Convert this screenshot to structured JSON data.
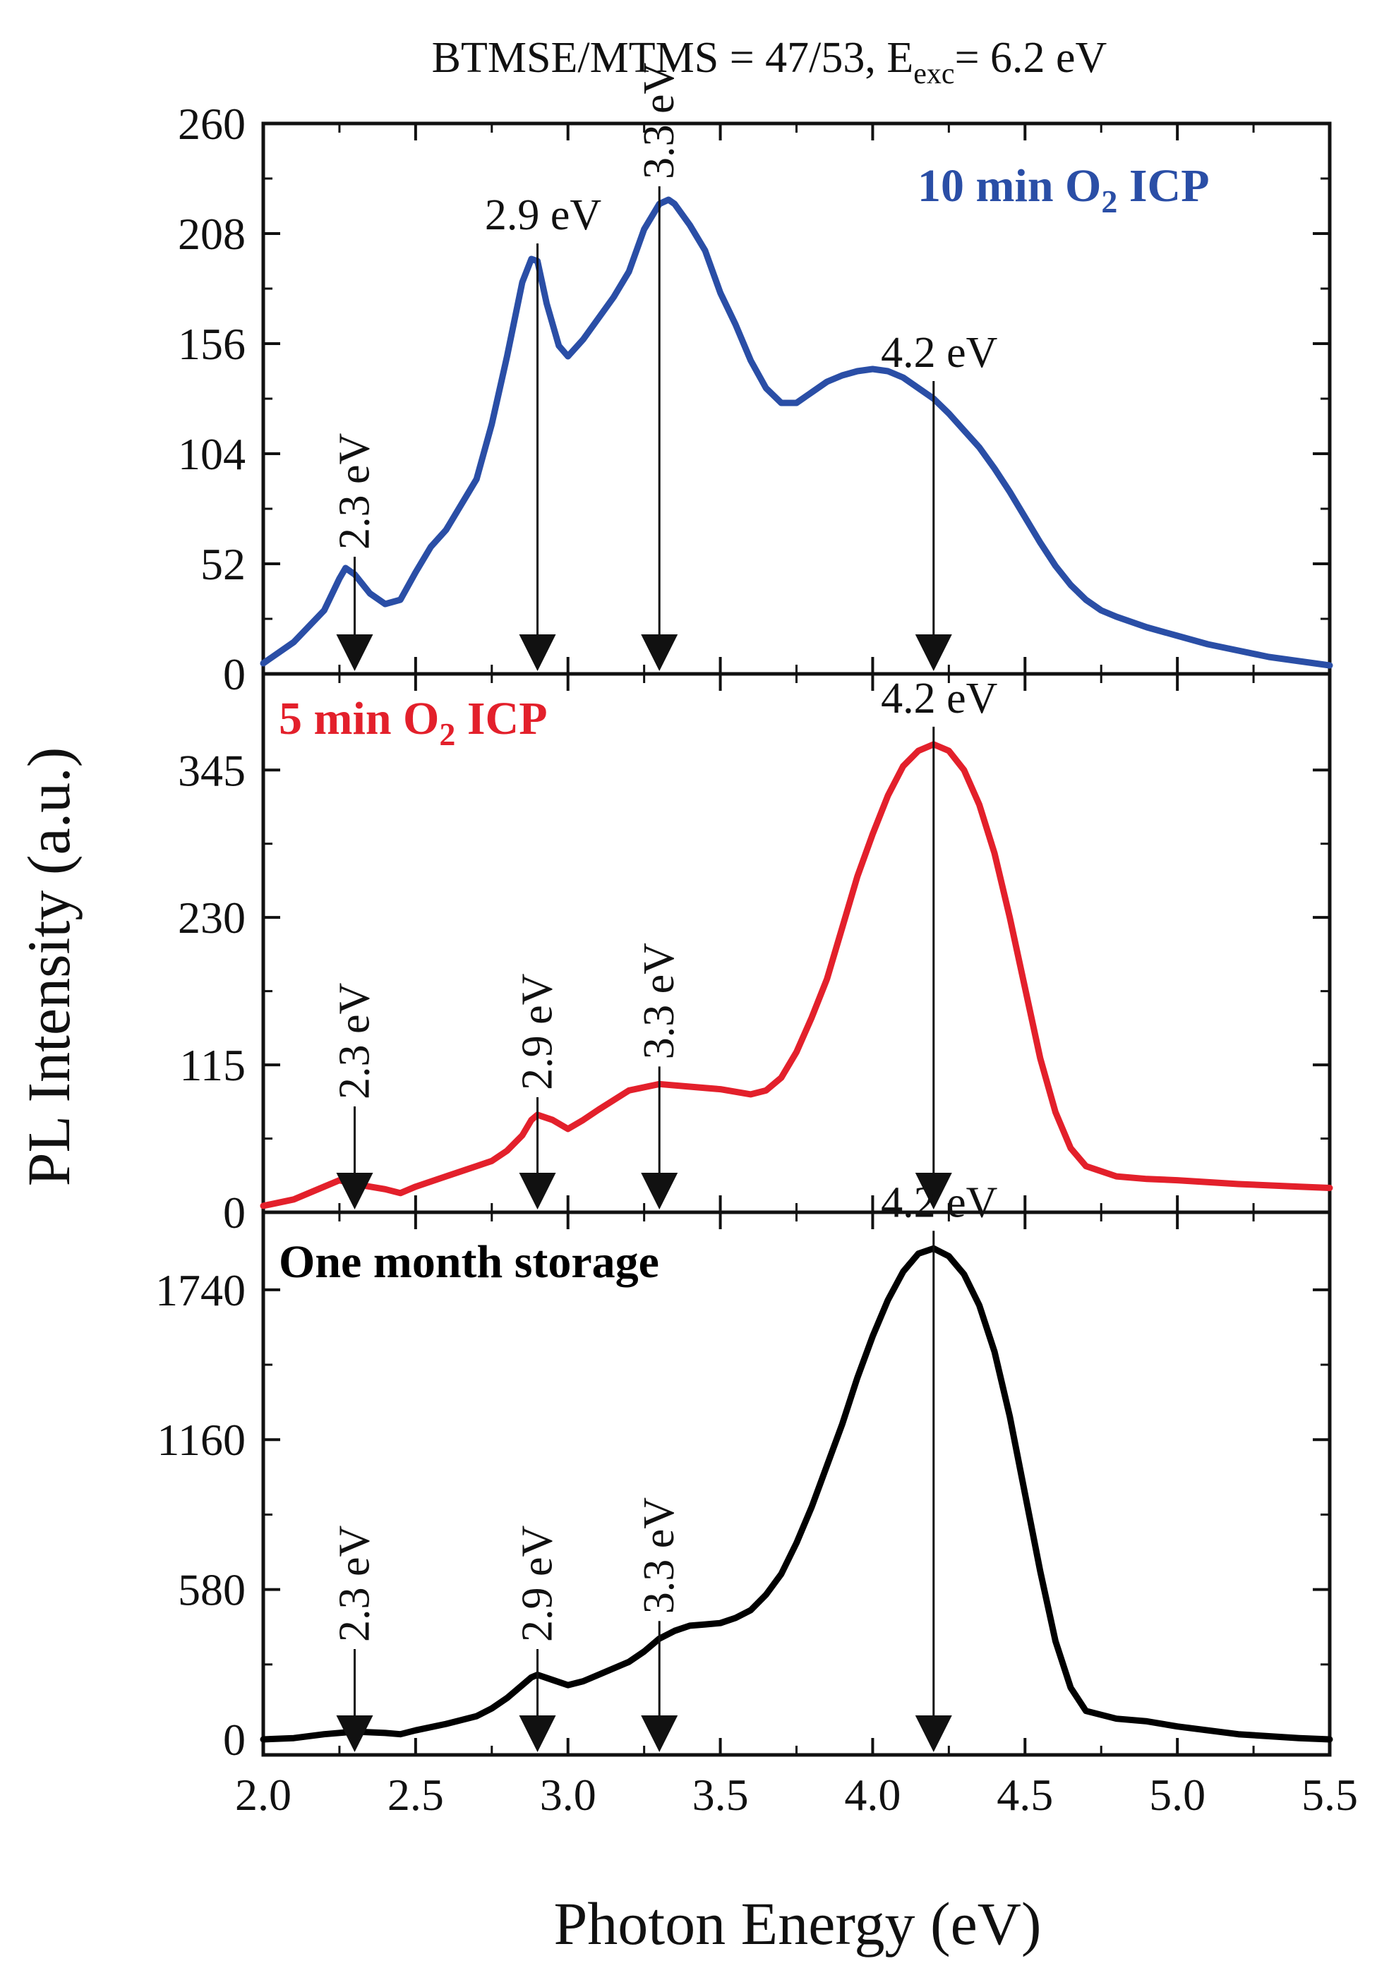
{
  "figure": {
    "title": {
      "prefix": "BTMSE/MTMS = 47/53, E",
      "sub": "exc",
      "suffix": "= 6.2 eV"
    },
    "xlabel": "Photon Energy (eV)",
    "ylabel": "PL Intensity (a.u.)",
    "x_ticks": [
      "2.0",
      "2.5",
      "3.0",
      "3.5",
      "4.0",
      "4.5",
      "5.0",
      "5.5"
    ]
  },
  "chart_data": [
    {
      "type": "line",
      "panel_label": {
        "prefix": "10 min O",
        "sub": "2",
        "suffix": " ICP"
      },
      "color": "#2a4ea6",
      "xlim": [
        2.0,
        5.5
      ],
      "ylim": [
        0,
        260
      ],
      "y_ticks": [
        0,
        52,
        104,
        156,
        208,
        260
      ],
      "series": [
        {
          "x": [
            2.0,
            2.1,
            2.2,
            2.25,
            2.27,
            2.3,
            2.35,
            2.4,
            2.45,
            2.5,
            2.55,
            2.6,
            2.65,
            2.7,
            2.75,
            2.8,
            2.85,
            2.88,
            2.9,
            2.93,
            2.97,
            3.0,
            3.05,
            3.1,
            3.15,
            3.2,
            3.25,
            3.3,
            3.33,
            3.35,
            3.4,
            3.45,
            3.5,
            3.55,
            3.6,
            3.65,
            3.7,
            3.75,
            3.8,
            3.85,
            3.9,
            3.95,
            4.0,
            4.05,
            4.1,
            4.15,
            4.2,
            4.25,
            4.3,
            4.35,
            4.4,
            4.45,
            4.5,
            4.55,
            4.6,
            4.65,
            4.7,
            4.75,
            4.8,
            4.9,
            5.0,
            5.1,
            5.2,
            5.3,
            5.4,
            5.5
          ],
          "y": [
            5,
            15,
            30,
            45,
            50,
            47,
            38,
            33,
            35,
            48,
            60,
            68,
            80,
            92,
            118,
            150,
            185,
            196,
            195,
            175,
            155,
            150,
            158,
            168,
            178,
            190,
            210,
            222,
            224,
            222,
            212,
            200,
            180,
            165,
            148,
            135,
            128,
            128,
            133,
            138,
            141,
            143,
            144,
            143,
            140,
            135,
            130,
            123,
            115,
            107,
            97,
            86,
            74,
            62,
            51,
            42,
            35,
            30,
            27,
            22,
            18,
            14,
            11,
            8,
            6,
            4
          ]
        }
      ],
      "annotations": [
        {
          "label": "2.3 eV",
          "x": 2.3,
          "orient": "vertical"
        },
        {
          "label": "2.9 eV",
          "x": 2.9,
          "orient": "horizontal"
        },
        {
          "label": "3.3 eV",
          "x": 3.3,
          "orient": "vertical"
        },
        {
          "label": "4.2 eV",
          "x": 4.2,
          "orient": "horizontal"
        }
      ]
    },
    {
      "type": "line",
      "panel_label": {
        "prefix": "5 min O",
        "sub": "2",
        "suffix": " ICP"
      },
      "color": "#e3202b",
      "xlim": [
        2.0,
        5.5
      ],
      "ylim": [
        0,
        420
      ],
      "y_ticks": [
        0,
        115,
        230,
        345
      ],
      "series": [
        {
          "x": [
            2.0,
            2.1,
            2.2,
            2.25,
            2.3,
            2.4,
            2.45,
            2.5,
            2.6,
            2.7,
            2.75,
            2.8,
            2.85,
            2.88,
            2.9,
            2.95,
            3.0,
            3.05,
            3.1,
            3.2,
            3.3,
            3.4,
            3.5,
            3.6,
            3.65,
            3.7,
            3.75,
            3.8,
            3.85,
            3.9,
            3.95,
            4.0,
            4.05,
            4.1,
            4.15,
            4.2,
            4.25,
            4.3,
            4.35,
            4.4,
            4.45,
            4.5,
            4.55,
            4.6,
            4.65,
            4.7,
            4.8,
            4.9,
            5.0,
            5.2,
            5.4,
            5.5
          ],
          "y": [
            5,
            10,
            20,
            25,
            22,
            18,
            15,
            20,
            28,
            36,
            40,
            48,
            60,
            72,
            76,
            72,
            65,
            72,
            80,
            95,
            100,
            98,
            96,
            92,
            95,
            105,
            125,
            152,
            182,
            222,
            262,
            295,
            325,
            348,
            360,
            365,
            360,
            345,
            318,
            280,
            230,
            175,
            120,
            78,
            50,
            36,
            28,
            26,
            25,
            22,
            20,
            19
          ]
        }
      ],
      "annotations": [
        {
          "label": "2.3 eV",
          "x": 2.3,
          "orient": "vertical"
        },
        {
          "label": "2.9 eV",
          "x": 2.9,
          "orient": "vertical"
        },
        {
          "label": "3.3 eV",
          "x": 3.3,
          "orient": "vertical"
        },
        {
          "label": "4.2 eV",
          "x": 4.2,
          "orient": "horizontal"
        }
      ]
    },
    {
      "type": "line",
      "panel_label": {
        "prefix": "One month storage",
        "sub": "",
        "suffix": ""
      },
      "color": "#000000",
      "xlim": [
        2.0,
        5.5
      ],
      "ylim": [
        -60,
        2040
      ],
      "y_ticks": [
        0,
        580,
        1160,
        1740
      ],
      "series": [
        {
          "x": [
            2.0,
            2.1,
            2.2,
            2.3,
            2.4,
            2.45,
            2.5,
            2.6,
            2.7,
            2.75,
            2.8,
            2.85,
            2.88,
            2.9,
            2.95,
            3.0,
            3.05,
            3.1,
            3.2,
            3.25,
            3.3,
            3.35,
            3.4,
            3.45,
            3.5,
            3.55,
            3.6,
            3.65,
            3.7,
            3.75,
            3.8,
            3.85,
            3.9,
            3.95,
            4.0,
            4.05,
            4.1,
            4.15,
            4.2,
            4.25,
            4.3,
            4.35,
            4.4,
            4.45,
            4.5,
            4.55,
            4.6,
            4.65,
            4.7,
            4.8,
            4.9,
            5.0,
            5.2,
            5.4,
            5.5
          ],
          "y": [
            0,
            5,
            20,
            30,
            25,
            20,
            35,
            60,
            90,
            120,
            160,
            210,
            240,
            250,
            230,
            210,
            225,
            250,
            300,
            340,
            390,
            420,
            440,
            445,
            450,
            470,
            500,
            560,
            640,
            760,
            900,
            1060,
            1220,
            1400,
            1560,
            1700,
            1810,
            1880,
            1900,
            1870,
            1800,
            1680,
            1500,
            1250,
            950,
            650,
            380,
            200,
            110,
            80,
            70,
            50,
            20,
            5,
            0
          ]
        }
      ],
      "annotations": [
        {
          "label": "2.3 eV",
          "x": 2.3,
          "orient": "vertical"
        },
        {
          "label": "2.9 eV",
          "x": 2.9,
          "orient": "vertical"
        },
        {
          "label": "3.3 eV",
          "x": 3.3,
          "orient": "vertical"
        },
        {
          "label": "4.2 eV",
          "x": 4.2,
          "orient": "horizontal"
        }
      ]
    }
  ]
}
